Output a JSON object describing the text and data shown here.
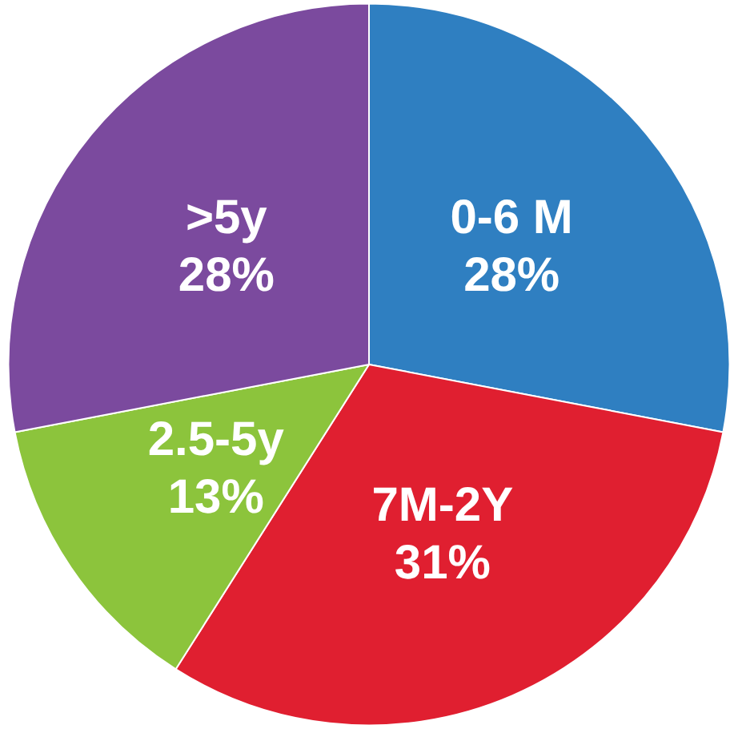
{
  "chart_data": {
    "type": "pie",
    "categories": [
      "0-6 M",
      "7M-2Y",
      "2.5-5y",
      ">5y"
    ],
    "values": [
      28,
      31,
      13,
      28
    ],
    "value_labels": [
      "28%",
      "31%",
      "13%",
      "28%"
    ],
    "colors": [
      "#2f7fc1",
      "#e01f30",
      "#8cc43c",
      "#7b4a9e"
    ],
    "legend": false
  }
}
